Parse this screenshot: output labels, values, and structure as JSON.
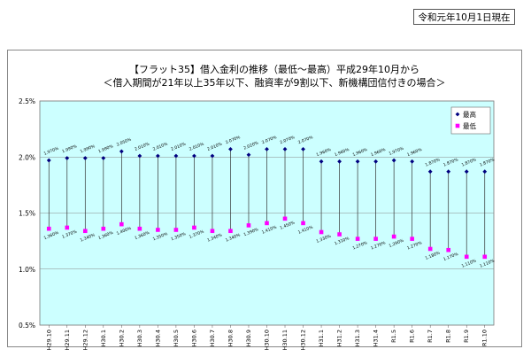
{
  "header": {
    "as_of": "令和元年10月1日現在"
  },
  "chart_data": {
    "type": "scatter",
    "title": "【フラット35】借入金利の推移（最低～最高）平成29年10月から",
    "subtitle": "＜借入期間が21年以上35年以下、融資率が9割以下、新機構団信付きの場合＞",
    "ylim": [
      0.5,
      2.5
    ],
    "y_ticks": [
      "2.5%",
      "2.0%",
      "1.5%",
      "1.0%",
      "0.5%"
    ],
    "grid": true,
    "legend_position": "top-right",
    "categories": [
      "H29.10",
      "H29.11",
      "H29.12",
      "H30.1",
      "H30.2",
      "H30.3",
      "H30.4",
      "H30.5",
      "H30.6",
      "H30.7",
      "H30.8",
      "H30.9",
      "H30.10",
      "H30.11",
      "H30.12",
      "H31.1",
      "H31.2",
      "H31.3",
      "H31.4",
      "R1.5",
      "R1.6",
      "R1.7",
      "R1.8",
      "R1.9",
      "R1.10"
    ],
    "series": [
      {
        "name": "最高",
        "color": "#000080",
        "values": [
          1.97,
          1.99,
          1.99,
          1.99,
          2.05,
          2.01,
          2.01,
          2.01,
          2.01,
          2.01,
          2.07,
          2.02,
          2.07,
          2.07,
          2.07,
          1.96,
          1.96,
          1.96,
          1.96,
          1.97,
          1.96,
          1.87,
          1.87,
          1.87,
          1.87
        ],
        "labels": [
          "1.970%",
          "1.990%",
          "1.990%",
          "1.990%",
          "2.050%",
          "2.010%",
          "2.010%",
          "2.010%",
          "2.010%",
          "2.010%",
          "2.070%",
          "2.020%",
          "2.070%",
          "2.070%",
          "2.070%",
          "1.960%",
          "1.960%",
          "1.960%",
          "1.960%",
          "1.970%",
          "1.960%",
          "1.870%",
          "1.870%",
          "1.870%",
          "1.870%"
        ]
      },
      {
        "name": "最低",
        "color": "#ff00ff",
        "values": [
          1.36,
          1.37,
          1.34,
          1.36,
          1.4,
          1.36,
          1.35,
          1.35,
          1.37,
          1.34,
          1.34,
          1.39,
          1.41,
          1.45,
          1.41,
          1.33,
          1.31,
          1.27,
          1.27,
          1.29,
          1.27,
          1.18,
          1.17,
          1.11,
          1.11
        ],
        "labels": [
          "1.360%",
          "1.370%",
          "1.340%",
          "1.360%",
          "1.400%",
          "1.360%",
          "1.350%",
          "1.350%",
          "1.370%",
          "1.340%",
          "1.340%",
          "1.390%",
          "1.410%",
          "1.450%",
          "1.410%",
          "1.330%",
          "1.310%",
          "1.270%",
          "1.270%",
          "1.290%",
          "1.270%",
          "1.180%",
          "1.170%",
          "1.110%",
          "1.110%"
        ]
      }
    ]
  }
}
